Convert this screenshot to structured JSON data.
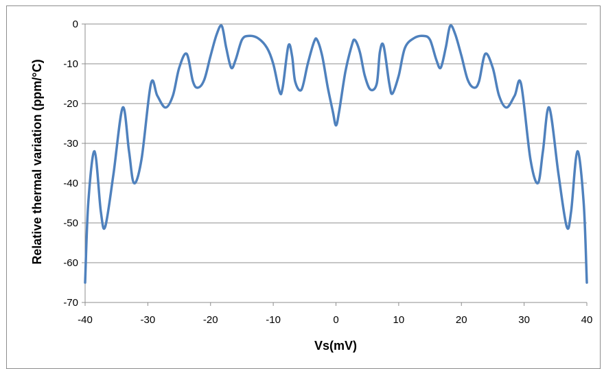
{
  "chart_data": {
    "type": "line",
    "title": "",
    "xlabel": "Vs(mV)",
    "ylabel": "Relative thermal variation (ppm/°C)",
    "xlim": [
      -40,
      40
    ],
    "ylim": [
      -70,
      0
    ],
    "x_ticks": [
      -40,
      -30,
      -20,
      -10,
      0,
      10,
      20,
      30,
      40
    ],
    "y_ticks": [
      0,
      -10,
      -20,
      -30,
      -40,
      -50,
      -60,
      -70
    ],
    "grid": "horizontal",
    "legend": "none",
    "series_color": "#4f81bd",
    "series": [
      {
        "x": [
          -40,
          -39.5,
          -38.5,
          -37.5,
          -36.8,
          -35.5,
          -34,
          -33,
          -32.2,
          -31,
          -29.5,
          -28.5,
          -27.2,
          -26,
          -25,
          -23.8,
          -22.8,
          -22,
          -21,
          -20,
          -19,
          -18.2,
          -17.5,
          -16.7,
          -16,
          -15,
          -14,
          -12.5,
          -11,
          -10,
          -9,
          -8.5,
          -7.6,
          -7,
          -6.5,
          -5.5,
          -4.5,
          -3.5,
          -3,
          -2.2,
          -1.3,
          -0.5,
          0,
          0.5,
          1.5,
          2.5,
          3,
          3.8,
          4.6,
          5.5,
          6.5,
          7,
          7.6,
          8.5,
          9,
          10,
          11,
          12.5,
          14,
          15,
          16,
          16.7,
          17.5,
          18.2,
          19,
          20,
          21,
          22,
          22.8,
          23.8,
          25,
          26,
          27.2,
          28.5,
          29.5,
          31,
          32.2,
          33,
          34,
          35.5,
          36.8,
          37.5,
          38.5,
          39.5,
          40
        ],
        "y": [
          -65,
          -45,
          -32,
          -47,
          -51,
          -38,
          -21,
          -32,
          -40,
          -34,
          -15,
          -18,
          -21,
          -18,
          -11,
          -7.5,
          -14.5,
          -16,
          -14,
          -8,
          -2.5,
          -0.5,
          -6,
          -11,
          -9,
          -4,
          -3,
          -3.5,
          -6,
          -10,
          -17,
          -16,
          -5.5,
          -8,
          -14.5,
          -16.5,
          -10,
          -4.5,
          -4,
          -8,
          -16,
          -22,
          -25.5,
          -22,
          -12,
          -5.5,
          -4,
          -7,
          -13,
          -16.5,
          -15,
          -7,
          -5.5,
          -15,
          -17.5,
          -13,
          -6,
          -3.5,
          -3,
          -4,
          -9,
          -11,
          -6,
          -0.5,
          -2.5,
          -8,
          -14,
          -16,
          -14.5,
          -7.5,
          -11,
          -18,
          -21,
          -18,
          -15,
          -34,
          -40,
          -32,
          -21,
          -38,
          -51,
          -47,
          -32,
          -45,
          -65
        ]
      }
    ]
  }
}
